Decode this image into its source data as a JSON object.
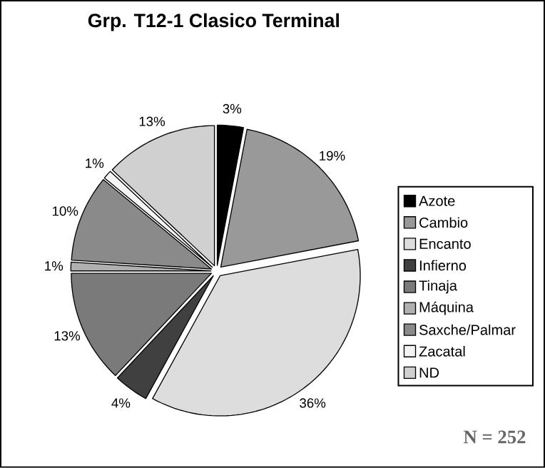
{
  "chart_data": {
    "type": "pie",
    "title": "Grp. T12-1 Clasico Terminal",
    "categories": [
      "Azote",
      "Cambio",
      "Encanto",
      "Infierno",
      "Tinaja",
      "Máquina",
      "Saxche/Palmar",
      "Zacatal",
      "ND"
    ],
    "values": [
      3,
      19,
      36,
      4,
      13,
      1,
      10,
      1,
      13
    ],
    "value_labels": [
      "3%",
      "19%",
      "36%",
      "4%",
      "13%",
      "1%",
      "10%",
      "1%",
      "13%"
    ],
    "colors": [
      "#000000",
      "#999999",
      "#dddddd",
      "#404040",
      "#7a7a7a",
      "#b0b0b0",
      "#8a8a8a",
      "#f4f4f4",
      "#d0d0d0"
    ],
    "legend": "right",
    "annotations": [
      "N = 252"
    ]
  }
}
